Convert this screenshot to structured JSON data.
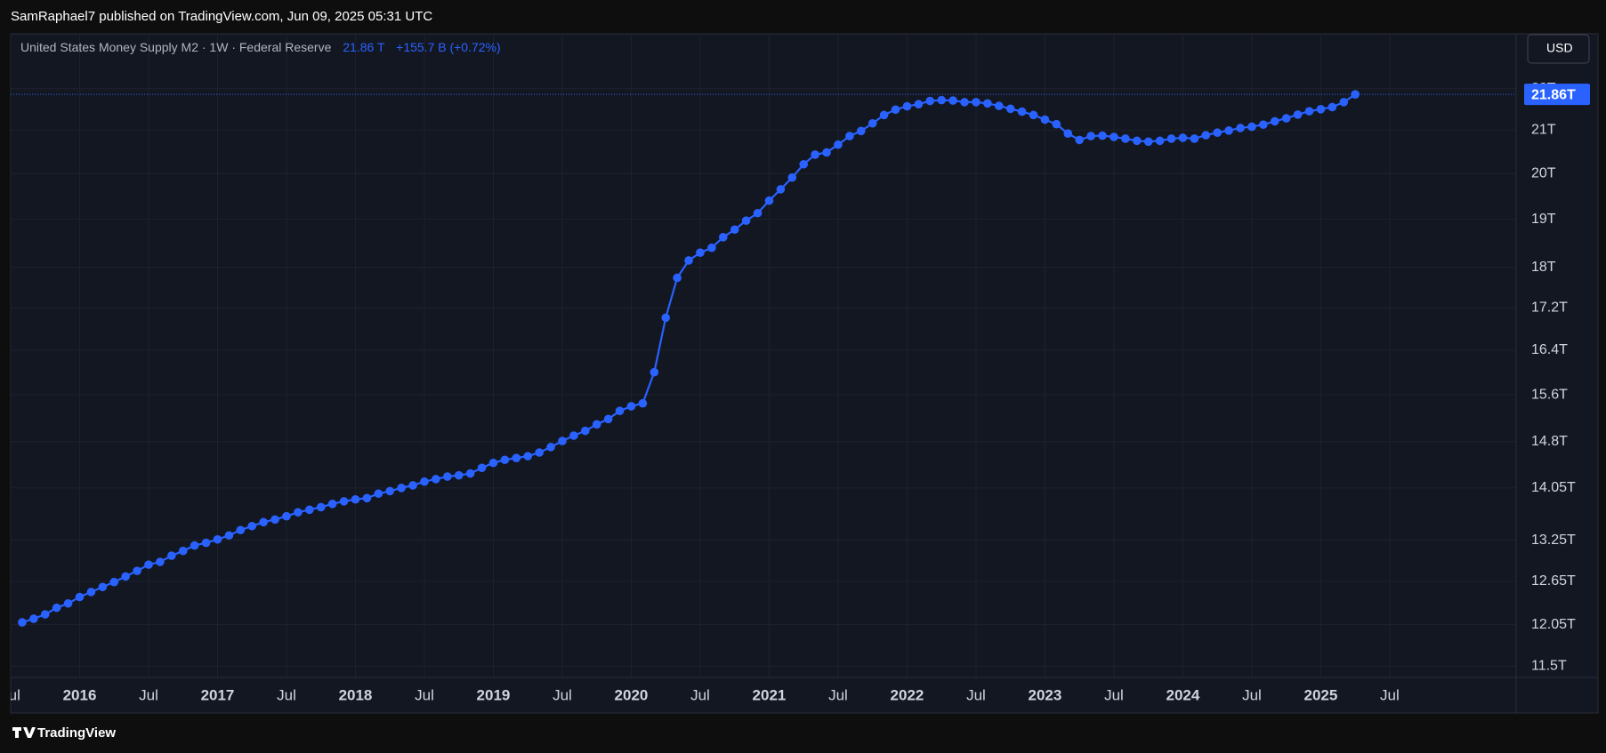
{
  "header": "SamRaphael7 published on TradingView.com, Jun 09, 2025 05:31 UTC",
  "currency": "USD",
  "brand": "TradingView",
  "chart_data": {
    "type": "line",
    "title": "United States Money Supply M2 · 1W · Federal Reserve",
    "last_value_text": "21.86 T",
    "change_text": "+155.7 B (+0.72%)",
    "color": "#2962ff",
    "log_scale": true,
    "grid": true,
    "x": [
      "2015-08",
      "2015-09",
      "2015-10",
      "2015-11",
      "2015-12",
      "2016-01",
      "2016-02",
      "2016-03",
      "2016-04",
      "2016-05",
      "2016-06",
      "2016-07",
      "2016-08",
      "2016-09",
      "2016-10",
      "2016-11",
      "2016-12",
      "2017-01",
      "2017-02",
      "2017-03",
      "2017-04",
      "2017-05",
      "2017-06",
      "2017-07",
      "2017-08",
      "2017-09",
      "2017-10",
      "2017-11",
      "2017-12",
      "2018-01",
      "2018-02",
      "2018-03",
      "2018-04",
      "2018-05",
      "2018-06",
      "2018-07",
      "2018-08",
      "2018-09",
      "2018-10",
      "2018-11",
      "2018-12",
      "2019-01",
      "2019-02",
      "2019-03",
      "2019-04",
      "2019-05",
      "2019-06",
      "2019-07",
      "2019-08",
      "2019-09",
      "2019-10",
      "2019-11",
      "2019-12",
      "2020-01",
      "2020-02",
      "2020-03",
      "2020-04",
      "2020-05",
      "2020-06",
      "2020-07",
      "2020-08",
      "2020-09",
      "2020-10",
      "2020-11",
      "2020-12",
      "2021-01",
      "2021-02",
      "2021-03",
      "2021-04",
      "2021-05",
      "2021-06",
      "2021-07",
      "2021-08",
      "2021-09",
      "2021-10",
      "2021-11",
      "2021-12",
      "2022-01",
      "2022-02",
      "2022-03",
      "2022-04",
      "2022-05",
      "2022-06",
      "2022-07",
      "2022-08",
      "2022-09",
      "2022-10",
      "2022-11",
      "2022-12",
      "2023-01",
      "2023-02",
      "2023-03",
      "2023-04",
      "2023-05",
      "2023-06",
      "2023-07",
      "2023-08",
      "2023-09",
      "2023-10",
      "2023-11",
      "2023-12",
      "2024-01",
      "2024-02",
      "2024-03",
      "2024-04",
      "2024-05",
      "2024-06",
      "2024-07",
      "2024-08",
      "2024-09",
      "2024-10",
      "2024-11",
      "2024-12",
      "2025-01",
      "2025-02",
      "2025-03",
      "2025-04"
    ],
    "values": [
      12.08,
      12.13,
      12.19,
      12.28,
      12.34,
      12.43,
      12.5,
      12.57,
      12.64,
      12.72,
      12.8,
      12.89,
      12.93,
      13.02,
      13.09,
      13.17,
      13.21,
      13.26,
      13.32,
      13.4,
      13.46,
      13.52,
      13.56,
      13.61,
      13.67,
      13.71,
      13.75,
      13.8,
      13.84,
      13.87,
      13.89,
      13.96,
      14.0,
      14.05,
      14.09,
      14.15,
      14.19,
      14.23,
      14.25,
      14.28,
      14.37,
      14.45,
      14.5,
      14.53,
      14.56,
      14.62,
      14.71,
      14.81,
      14.9,
      14.98,
      15.09,
      15.18,
      15.32,
      15.4,
      15.45,
      16.0,
      17.01,
      17.79,
      18.14,
      18.3,
      18.4,
      18.62,
      18.78,
      18.97,
      19.13,
      19.4,
      19.65,
      19.91,
      20.21,
      20.43,
      20.48,
      20.66,
      20.86,
      20.98,
      21.16,
      21.36,
      21.49,
      21.57,
      21.62,
      21.7,
      21.72,
      21.71,
      21.67,
      21.67,
      21.64,
      21.58,
      21.51,
      21.44,
      21.36,
      21.25,
      21.14,
      20.92,
      20.77,
      20.86,
      20.87,
      20.84,
      20.8,
      20.75,
      20.73,
      20.75,
      20.8,
      20.82,
      20.8,
      20.88,
      20.94,
      20.99,
      21.05,
      21.08,
      21.13,
      21.21,
      21.28,
      21.37,
      21.45,
      21.5,
      21.55,
      21.67,
      21.86
    ],
    "xlim": [
      "2015-07",
      "2026-06"
    ],
    "xticks": [
      {
        "value": "2015-07",
        "label": "Jul"
      },
      {
        "value": "2016-01",
        "label": "2016"
      },
      {
        "value": "2016-07",
        "label": "Jul"
      },
      {
        "value": "2017-01",
        "label": "2017"
      },
      {
        "value": "2017-07",
        "label": "Jul"
      },
      {
        "value": "2018-01",
        "label": "2018"
      },
      {
        "value": "2018-07",
        "label": "Jul"
      },
      {
        "value": "2019-01",
        "label": "2019"
      },
      {
        "value": "2019-07",
        "label": "Jul"
      },
      {
        "value": "2020-01",
        "label": "2020"
      },
      {
        "value": "2020-07",
        "label": "Jul"
      },
      {
        "value": "2021-01",
        "label": "2021"
      },
      {
        "value": "2021-07",
        "label": "Jul"
      },
      {
        "value": "2022-01",
        "label": "2022"
      },
      {
        "value": "2022-07",
        "label": "Jul"
      },
      {
        "value": "2023-01",
        "label": "2023"
      },
      {
        "value": "2023-07",
        "label": "Jul"
      },
      {
        "value": "2024-01",
        "label": "2024"
      },
      {
        "value": "2024-07",
        "label": "Jul"
      },
      {
        "value": "2025-01",
        "label": "2025"
      },
      {
        "value": "2025-07",
        "label": "Jul"
      }
    ],
    "ylim": [
      11.356,
      23.4
    ],
    "yticks": [
      {
        "value": 11.5,
        "label": "11.5T"
      },
      {
        "value": 12.05,
        "label": "12.05T"
      },
      {
        "value": 12.65,
        "label": "12.65T"
      },
      {
        "value": 13.25,
        "label": "13.25T"
      },
      {
        "value": 14.05,
        "label": "14.05T"
      },
      {
        "value": 14.8,
        "label": "14.8T"
      },
      {
        "value": 15.6,
        "label": "15.6T"
      },
      {
        "value": 16.4,
        "label": "16.4T"
      },
      {
        "value": 17.2,
        "label": "17.2T"
      },
      {
        "value": 18,
        "label": "18T"
      },
      {
        "value": 19,
        "label": "19T"
      },
      {
        "value": 20,
        "label": "20T"
      },
      {
        "value": 21,
        "label": "21T"
      },
      {
        "value": 22,
        "label": "22T"
      }
    ],
    "price_line": {
      "value": 21.86,
      "label": "21.86T"
    }
  }
}
